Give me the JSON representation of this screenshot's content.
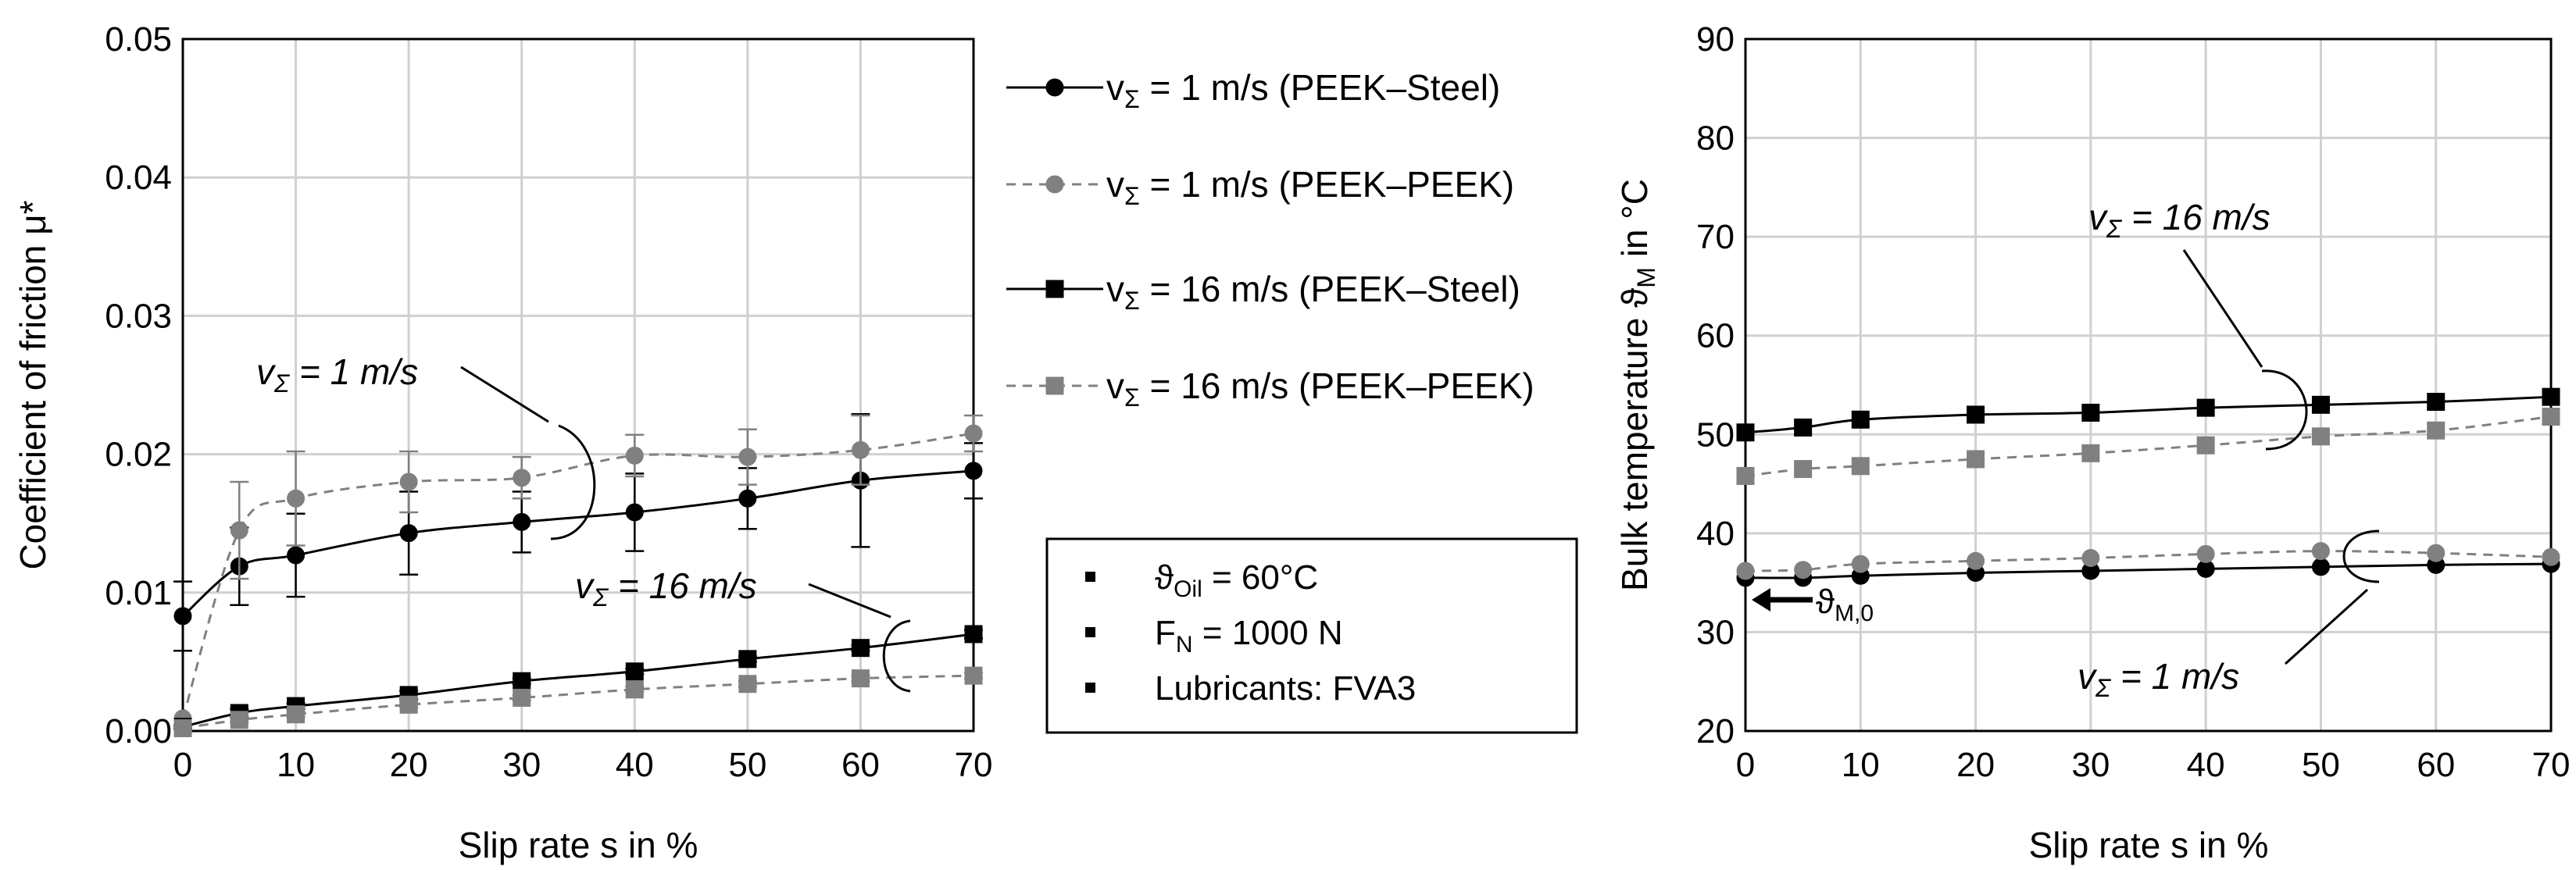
{
  "chart_data": [
    {
      "type": "line",
      "xlabel": "Slip rate s in %",
      "ylabel": "Coefficient of friction μ*",
      "xlim": [
        0,
        70
      ],
      "ylim": [
        0,
        0.05
      ],
      "xticks": [
        0,
        10,
        20,
        30,
        40,
        50,
        60,
        70
      ],
      "yticks": [
        0,
        0.01,
        0.02,
        0.03,
        0.04,
        0.05
      ],
      "ytick_labels": [
        "0.00",
        "0.01",
        "0.02",
        "0.03",
        "0.04",
        "0.05"
      ],
      "grid": true,
      "series": [
        {
          "name": "vΣ = 1 m/s (PEEK–Steel)",
          "color": "#000000",
          "dashed": false,
          "marker": "circle",
          "x": [
            0,
            5,
            10,
            20,
            30,
            40,
            50,
            60,
            70
          ],
          "y": [
            0.0083,
            0.0119,
            0.0127,
            0.0143,
            0.0151,
            0.0158,
            0.0168,
            0.0181,
            0.0188
          ],
          "err": [
            0.0025,
            0.0028,
            0.003,
            0.003,
            0.0022,
            0.0028,
            0.0022,
            0.0048,
            0.002
          ]
        },
        {
          "name": "vΣ = 1 m/s (PEEK–PEEK)",
          "color": "#808080",
          "dashed": true,
          "marker": "circle",
          "x": [
            0,
            5,
            10,
            20,
            30,
            40,
            50,
            60,
            70
          ],
          "y": [
            0.0009,
            0.0145,
            0.0168,
            0.018,
            0.0183,
            0.0199,
            0.0198,
            0.0203,
            0.0215
          ],
          "err": [
            0,
            0.0035,
            0.0034,
            0.0022,
            0.0015,
            0.0015,
            0.002,
            0.0025,
            0.0013
          ]
        },
        {
          "name": "vΣ = 16 m/s (PEEK–Steel)",
          "color": "#000000",
          "dashed": false,
          "marker": "square",
          "x": [
            0,
            5,
            10,
            20,
            30,
            40,
            50,
            60,
            70
          ],
          "y": [
            0.0003,
            0.0013,
            0.0018,
            0.0026,
            0.0036,
            0.0043,
            0.0052,
            0.006,
            0.007
          ],
          "err": [
            0.0001,
            0.0003,
            0.0002,
            0.0003,
            0.0002,
            0.0002,
            0.0002,
            0.0002,
            0.0003
          ]
        },
        {
          "name": "vΣ = 16 m/s (PEEK–PEEK)",
          "color": "#808080",
          "dashed": true,
          "marker": "square",
          "x": [
            0,
            5,
            10,
            20,
            30,
            40,
            50,
            60,
            70
          ],
          "y": [
            0.0002,
            0.0008,
            0.0012,
            0.0019,
            0.0024,
            0.003,
            0.0034,
            0.0038,
            0.004
          ],
          "err": [
            0.0001,
            0.0002,
            0.0002,
            0.0002,
            0.0002,
            0.0002,
            0.0002,
            0.0002,
            0.0002
          ]
        }
      ],
      "annotations": [
        "vΣ = 1 m/s",
        "vΣ = 16 m/s"
      ]
    },
    {
      "type": "line",
      "xlabel": "Slip rate s in %",
      "ylabel": "Bulk temperature ϑM in °C",
      "xlim": [
        0,
        70
      ],
      "ylim": [
        20,
        90
      ],
      "xticks": [
        0,
        10,
        20,
        30,
        40,
        50,
        60,
        70
      ],
      "yticks": [
        20,
        30,
        40,
        50,
        60,
        70,
        80,
        90
      ],
      "grid": true,
      "series": [
        {
          "name": "vΣ = 1 m/s (PEEK–Steel)",
          "color": "#000000",
          "dashed": false,
          "marker": "circle",
          "x": [
            0,
            5,
            10,
            20,
            30,
            40,
            50,
            60,
            70
          ],
          "y": [
            35.5,
            35.5,
            35.7,
            36.0,
            36.2,
            36.4,
            36.6,
            36.8,
            36.9
          ]
        },
        {
          "name": "vΣ = 1 m/s (PEEK–PEEK)",
          "color": "#808080",
          "dashed": true,
          "marker": "circle",
          "x": [
            0,
            5,
            10,
            20,
            30,
            40,
            50,
            60,
            70
          ],
          "y": [
            36.2,
            36.3,
            36.9,
            37.2,
            37.5,
            37.9,
            38.2,
            38.0,
            37.6
          ]
        },
        {
          "name": "vΣ = 16 m/s (PEEK–Steel)",
          "color": "#000000",
          "dashed": false,
          "marker": "square",
          "x": [
            0,
            5,
            10,
            20,
            30,
            40,
            50,
            60,
            70
          ],
          "y": [
            50.2,
            50.7,
            51.5,
            52.0,
            52.2,
            52.7,
            53.0,
            53.3,
            53.8
          ]
        },
        {
          "name": "vΣ = 16 m/s (PEEK–PEEK)",
          "color": "#808080",
          "dashed": true,
          "marker": "square",
          "x": [
            0,
            5,
            10,
            20,
            30,
            40,
            50,
            60,
            70
          ],
          "y": [
            45.8,
            46.5,
            46.8,
            47.5,
            48.1,
            48.9,
            49.8,
            50.4,
            51.8
          ]
        }
      ],
      "annotations": [
        "vΣ = 16 m/s",
        "vΣ = 1 m/s",
        "ϑM,0"
      ]
    }
  ],
  "legend": {
    "items": [
      {
        "v": "v",
        "sub": "Σ",
        "rest": " = 1 m/s (PEEK–Steel)",
        "color": "#000000",
        "dashed": false,
        "marker": "circle"
      },
      {
        "v": "v",
        "sub": "Σ",
        "rest": " = 1 m/s (PEEK–PEEK)",
        "color": "#808080",
        "dashed": true,
        "marker": "circle"
      },
      {
        "v": "v",
        "sub": "Σ",
        "rest": " = 16 m/s (PEEK–Steel)",
        "color": "#000000",
        "dashed": false,
        "marker": "square"
      },
      {
        "v": "v",
        "sub": "Σ",
        "rest": " = 16 m/s (PEEK–PEEK)",
        "color": "#808080",
        "dashed": true,
        "marker": "square"
      }
    ]
  },
  "conditions": {
    "items": [
      {
        "main": "ϑ",
        "sub": "Oil",
        "rest": " = 60°C"
      },
      {
        "main": "F",
        "sub": "N",
        "rest": " = 1000 N"
      },
      {
        "main": "Lubricants: FVA3",
        "sub": "",
        "rest": ""
      }
    ]
  },
  "annotations": {
    "left_1": {
      "v": "v",
      "sub": "Σ",
      "rest": " = 1 m/s"
    },
    "left_16": {
      "v": "v",
      "sub": "Σ",
      "rest": " = 16 m/s"
    },
    "right_16": {
      "v": "v",
      "sub": "Σ",
      "rest": " = 16 m/s"
    },
    "right_1": {
      "v": "v",
      "sub": "Σ",
      "rest": " = 1 m/s"
    },
    "theta0": {
      "main": "ϑ",
      "sub": "M,0"
    }
  },
  "right_ylabel": {
    "main": "Bulk temperature ϑ",
    "sub": "M",
    "rest": " in °C"
  }
}
